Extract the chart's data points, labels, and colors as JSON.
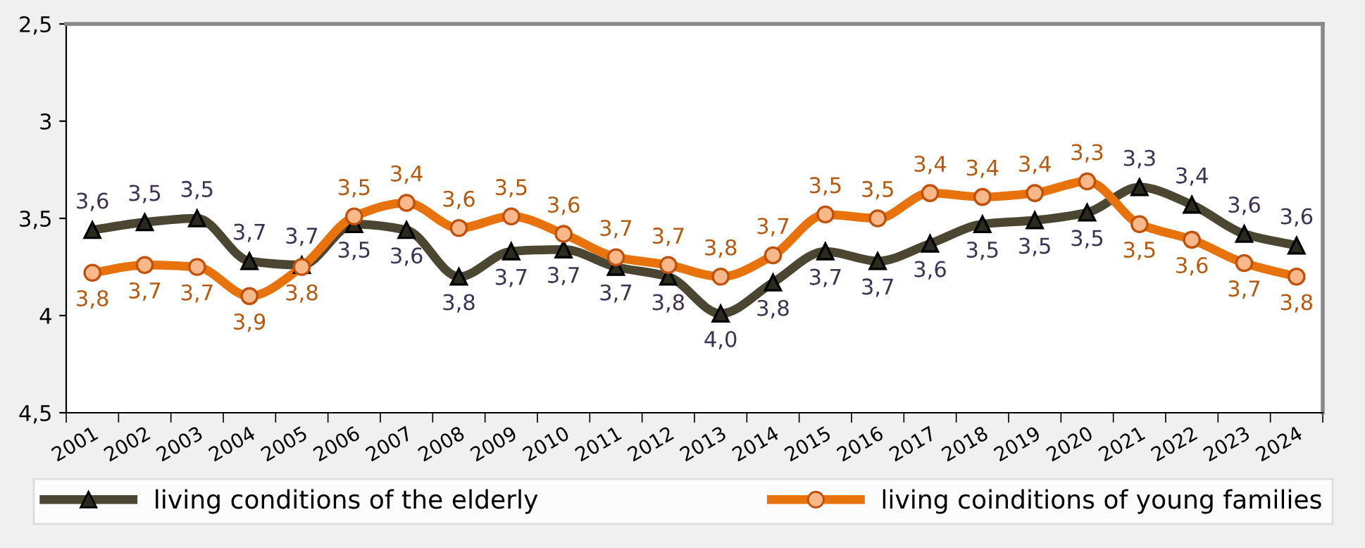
{
  "chart_data": {
    "type": "line",
    "categories": [
      "2001",
      "2002",
      "2003",
      "2004",
      "2005",
      "2006",
      "2007",
      "2008",
      "2009",
      "2010",
      "2011",
      "2012",
      "2013",
      "2014",
      "2015",
      "2016",
      "2017",
      "2018",
      "2019",
      "2020",
      "2021",
      "2022",
      "2023",
      "2024"
    ],
    "ylim": [
      4.5,
      2.5
    ],
    "yticks": [
      {
        "value": 2.5,
        "label": "2,5"
      },
      3,
      {
        "value": 3.5,
        "label": "3,5"
      },
      4,
      {
        "value": 4.5,
        "label": "4,5"
      }
    ],
    "grid": false,
    "legend": "bottom",
    "line_style": "solid",
    "series": [
      {
        "name": "living conditions of the elderly",
        "color": "#4a4632",
        "marker": "triangle",
        "values": [
          3.56,
          3.52,
          3.5,
          3.72,
          3.74,
          3.53,
          3.56,
          3.8,
          3.67,
          3.66,
          3.75,
          3.8,
          3.99,
          3.83,
          3.67,
          3.72,
          3.63,
          3.53,
          3.51,
          3.47,
          3.34,
          3.43,
          3.58,
          3.64
        ],
        "value_labels": [
          "3,6",
          "3,5",
          "3,5",
          "3,7",
          "3,7",
          "3,5",
          "3,6",
          "3,8",
          "3,7",
          "3,7",
          "3,7",
          "3,8",
          "4,0",
          "3,8",
          "3,7",
          "3,7",
          "3,6",
          "3,5",
          "3,5",
          "3,5",
          "3,3",
          "3,4",
          "3,6",
          "3,6"
        ]
      },
      {
        "name": "living coinditions of young families",
        "color": "#e8720c",
        "marker": "circle",
        "values": [
          3.78,
          3.74,
          3.75,
          3.9,
          3.75,
          3.49,
          3.42,
          3.55,
          3.49,
          3.58,
          3.7,
          3.74,
          3.8,
          3.69,
          3.48,
          3.5,
          3.37,
          3.39,
          3.37,
          3.31,
          3.53,
          3.61,
          3.73,
          3.8
        ],
        "value_labels": [
          "3,8",
          "3,7",
          "3,7",
          "3,9",
          "3,8",
          "3,5",
          "3,4",
          "3,6",
          "3,5",
          "3,6",
          "3,7",
          "3,7",
          "3,8",
          "3,7",
          "3,5",
          "3,5",
          "3,4",
          "3,4",
          "3,4",
          "3,3",
          "3,5",
          "3,6",
          "3,7",
          "3,8"
        ]
      }
    ]
  }
}
